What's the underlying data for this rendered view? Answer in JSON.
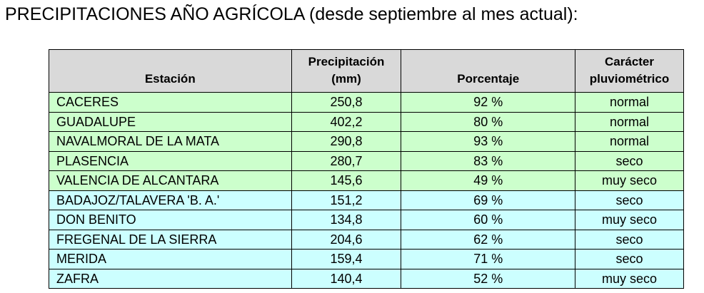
{
  "header": {
    "title": "PRECIPITACIONES AÑO AGRÍCOLA (desde septiembre al mes actual):"
  },
  "table": {
    "columns": [
      "Estación",
      "Precipitación\n(mm)",
      "Porcentaje",
      "Carácter\npluviométrico"
    ],
    "rows": [
      [
        "CACERES",
        "250,8",
        "92 %",
        "normal"
      ],
      [
        "GUADALUPE",
        "402,2",
        "80 %",
        "normal"
      ],
      [
        "NAVALMORAL DE LA MATA",
        "290,8",
        "93 %",
        "normal"
      ],
      [
        "PLASENCIA",
        "280,7",
        "83 %",
        "seco"
      ],
      [
        "VALENCIA DE ALCANTARA",
        "145,6",
        "49 %",
        "muy seco"
      ],
      [
        "BADAJOZ/TALAVERA 'B. A.'",
        "151,2",
        "69 %",
        "seco"
      ],
      [
        "DON BENITO",
        "134,8",
        "60 %",
        "muy seco"
      ],
      [
        "FREGENAL DE LA SIERRA",
        "204,6",
        "62 %",
        "seco"
      ],
      [
        "MERIDA",
        "159,4",
        "71 %",
        "seco"
      ],
      [
        "ZAFRA",
        "140,4",
        "52 %",
        "muy seco"
      ]
    ]
  }
}
